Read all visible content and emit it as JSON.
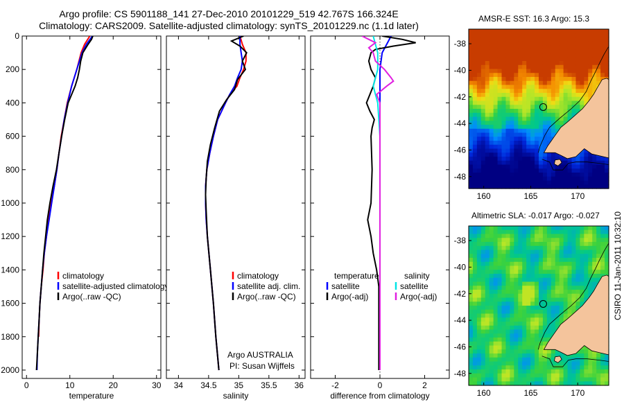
{
  "header": {
    "line1": "Argo profile: CS 5901188_141 27-Dec-2010 20101229_519 42.767S 166.324E",
    "line2": "Climatology: CARS2009. Satellite-adjusted climatology: synTS_20101229.nc (1.1d later)"
  },
  "maps": {
    "sst_title": "AMSR-E SST: 16.3 Argo: 15.3",
    "sla_title": "Altimetric SLA: -0.017 Argo: -0.027",
    "lat_ticks": [
      "-38",
      "-40",
      "-42",
      "-44",
      "-46",
      "-48"
    ],
    "lon_ticks": [
      "160",
      "165",
      "170"
    ],
    "float_position": {
      "lon": 166.324,
      "lat": -42.767
    },
    "land_color": "#f4c49c"
  },
  "credits": {
    "institution": "Argo AUSTRALIA",
    "pi": "PI: Susan Wijffels",
    "stamp": "CSIRO 11-Jan-2011 10:32:10"
  },
  "chart_data": [
    {
      "type": "line",
      "xlabel": "temperature",
      "xlim": [
        -1,
        31
      ],
      "ylim": [
        0,
        2050
      ],
      "xticks": [
        "0",
        "10",
        "20",
        "30"
      ],
      "yticks": [
        "0",
        "200",
        "400",
        "600",
        "800",
        "1000",
        "1200",
        "1400",
        "1600",
        "1800",
        "2000"
      ],
      "legend": [
        "climatology",
        "satellite-adjusted climatology",
        "Argo(..raw -QC)"
      ],
      "series": [
        {
          "name": "climatology",
          "color": "#ff0000",
          "y": [
            0,
            50,
            100,
            200,
            300,
            400,
            500,
            600,
            700,
            800,
            900,
            1000,
            1100,
            1200,
            1300,
            1400,
            1500,
            1600,
            1700,
            1800
          ],
          "x": [
            14.6,
            13.4,
            12.6,
            11.6,
            10.4,
            9.4,
            8.7,
            8.0,
            7.5,
            7.0,
            6.4,
            5.7,
            5.1,
            4.6,
            4.1,
            3.8,
            3.4,
            3.1,
            2.9,
            2.8
          ]
        },
        {
          "name": "satellite-adjusted climatology",
          "color": "#0000ff",
          "y": [
            0,
            50,
            100,
            200,
            300,
            400,
            500,
            600,
            700,
            800,
            900,
            1000,
            1100,
            1200,
            1300,
            1400,
            1500,
            1600,
            1700,
            1800,
            1900,
            2000
          ],
          "x": [
            15.2,
            13.8,
            12.8,
            11.6,
            10.4,
            9.5,
            8.7,
            8.1,
            7.5,
            7.0,
            6.4,
            5.8,
            5.2,
            4.6,
            4.1,
            3.7,
            3.4,
            3.1,
            2.9,
            2.7,
            2.5,
            2.4
          ]
        },
        {
          "name": "Argo(..raw -QC)",
          "color": "#000000",
          "y": [
            0,
            20,
            50,
            100,
            150,
            200,
            250,
            300,
            400,
            500,
            600,
            700,
            800,
            900,
            1000,
            1100,
            1200,
            1300,
            1400,
            1500,
            1600,
            1700,
            1800,
            1900,
            2000
          ],
          "x": [
            15.3,
            15.0,
            14.2,
            13.0,
            12.5,
            12.2,
            11.8,
            11.2,
            9.6,
            8.8,
            8.1,
            7.5,
            6.9,
            6.1,
            5.4,
            4.8,
            4.4,
            4.0,
            3.7,
            3.4,
            3.1,
            2.9,
            2.7,
            2.5,
            2.3
          ]
        }
      ]
    },
    {
      "type": "line",
      "xlabel": "salinity",
      "xlim": [
        33.8,
        36.1
      ],
      "ylim": [
        0,
        2050
      ],
      "xticks": [
        "34",
        "34.5",
        "35",
        "35.5",
        "36"
      ],
      "legend": [
        "climatology",
        "satellite adj. clim.",
        "Argo(..raw -QC)"
      ],
      "series": [
        {
          "name": "climatology",
          "color": "#ff0000",
          "y": [
            0,
            50,
            100,
            150,
            200,
            250,
            300,
            350,
            400,
            500,
            600,
            700,
            800,
            900,
            1000,
            1100,
            1200,
            1400,
            1600,
            1800,
            2000
          ],
          "x": [
            35.02,
            35.06,
            35.12,
            35.12,
            35.08,
            35.02,
            34.97,
            34.85,
            34.78,
            34.65,
            34.58,
            34.52,
            34.47,
            34.45,
            34.45,
            34.46,
            34.48,
            34.53,
            34.58,
            34.62,
            34.67
          ]
        },
        {
          "name": "satellite adj. clim.",
          "color": "#0000ff",
          "y": [
            0,
            50,
            100,
            150,
            200,
            250,
            300,
            350,
            400,
            500,
            600,
            700,
            800,
            900,
            1000,
            1100,
            1200,
            1400,
            1600,
            1800,
            2000
          ],
          "x": [
            35.02,
            35.02,
            35.04,
            35.06,
            35.04,
            34.98,
            34.93,
            34.85,
            34.78,
            34.65,
            34.58,
            34.52,
            34.47,
            34.45,
            34.45,
            34.46,
            34.48,
            34.53,
            34.58,
            34.62,
            34.67
          ]
        },
        {
          "name": "Argo(..raw -QC)",
          "color": "#000000",
          "y": [
            0,
            30,
            60,
            100,
            150,
            200,
            260,
            320,
            380,
            450,
            550,
            650,
            750,
            850,
            950,
            1050,
            1200,
            1400,
            1600,
            1800,
            2000
          ],
          "x": [
            35.08,
            34.88,
            35.02,
            35.13,
            35.06,
            35.11,
            34.98,
            34.93,
            34.8,
            34.68,
            34.6,
            34.53,
            34.48,
            34.46,
            34.45,
            34.46,
            34.48,
            34.53,
            34.58,
            34.62,
            34.67
          ]
        }
      ]
    },
    {
      "type": "line",
      "xlabel": "difference from climatology",
      "xlim": [
        -3.1,
        3.1
      ],
      "ylim": [
        0,
        2050
      ],
      "xticks": [
        "-2",
        "0",
        "2"
      ],
      "legend_groups": [
        {
          "heading": "temperature",
          "items": [
            "satellite",
            "Argo(-adj)"
          ]
        },
        {
          "heading": "salinity",
          "items": [
            "satellite",
            "Argo(-adj)"
          ]
        }
      ],
      "series": [
        {
          "name": "satellite",
          "group": "temperature",
          "color": "#0000ff",
          "y": [
            0,
            50,
            100,
            200,
            300,
            400,
            600,
            800,
            1000,
            1200,
            1400,
            1600,
            1800,
            2000
          ],
          "x": [
            0.5,
            0.3,
            0.1,
            0.0,
            0.0,
            0.0,
            0.0,
            0.0,
            0.0,
            0.0,
            0.0,
            0.0,
            0.0,
            0.0
          ]
        },
        {
          "name": "Argo(-adj)",
          "group": "temperature",
          "color": "#000000",
          "y": [
            0,
            20,
            40,
            60,
            80,
            100,
            150,
            200,
            250,
            300,
            350,
            400,
            450,
            500,
            550,
            600,
            800,
            1000,
            1100,
            1200,
            1300,
            1400,
            1500,
            1600,
            1800,
            2000
          ],
          "x": [
            0.1,
            1.0,
            1.6,
            0.6,
            -0.2,
            -0.4,
            -0.5,
            -0.4,
            -0.2,
            -0.3,
            -0.45,
            -0.6,
            -0.45,
            -0.25,
            -0.35,
            -0.4,
            -0.35,
            -0.4,
            -0.55,
            -0.4,
            -0.3,
            -0.15,
            -0.05,
            -0.05,
            -0.05,
            -0.05
          ]
        },
        {
          "name": "satellite",
          "group": "salinity",
          "color": "#00e5e5",
          "y": [
            0,
            50,
            100,
            200,
            300,
            400,
            600,
            800,
            1000,
            1200,
            1400,
            1600,
            1800,
            2000
          ],
          "x": [
            -0.3,
            -0.2,
            -0.1,
            -0.1,
            -0.3,
            -0.1,
            0.0,
            0.0,
            0.0,
            0.0,
            0.0,
            0.0,
            0.0,
            0.0
          ]
        },
        {
          "name": "Argo(-adj)",
          "group": "salinity",
          "color": "#e020e0",
          "y": [
            0,
            20,
            40,
            70,
            100,
            150,
            200,
            250,
            270,
            300,
            350,
            400,
            450,
            500,
            700,
            1000,
            1500,
            2000
          ],
          "x": [
            -0.8,
            -0.5,
            -0.2,
            -0.5,
            -0.3,
            -0.2,
            0.2,
            0.5,
            0.6,
            0.3,
            -0.15,
            0.0,
            0.0,
            0.0,
            0.0,
            0.0,
            0.0,
            0.0
          ]
        }
      ]
    }
  ]
}
